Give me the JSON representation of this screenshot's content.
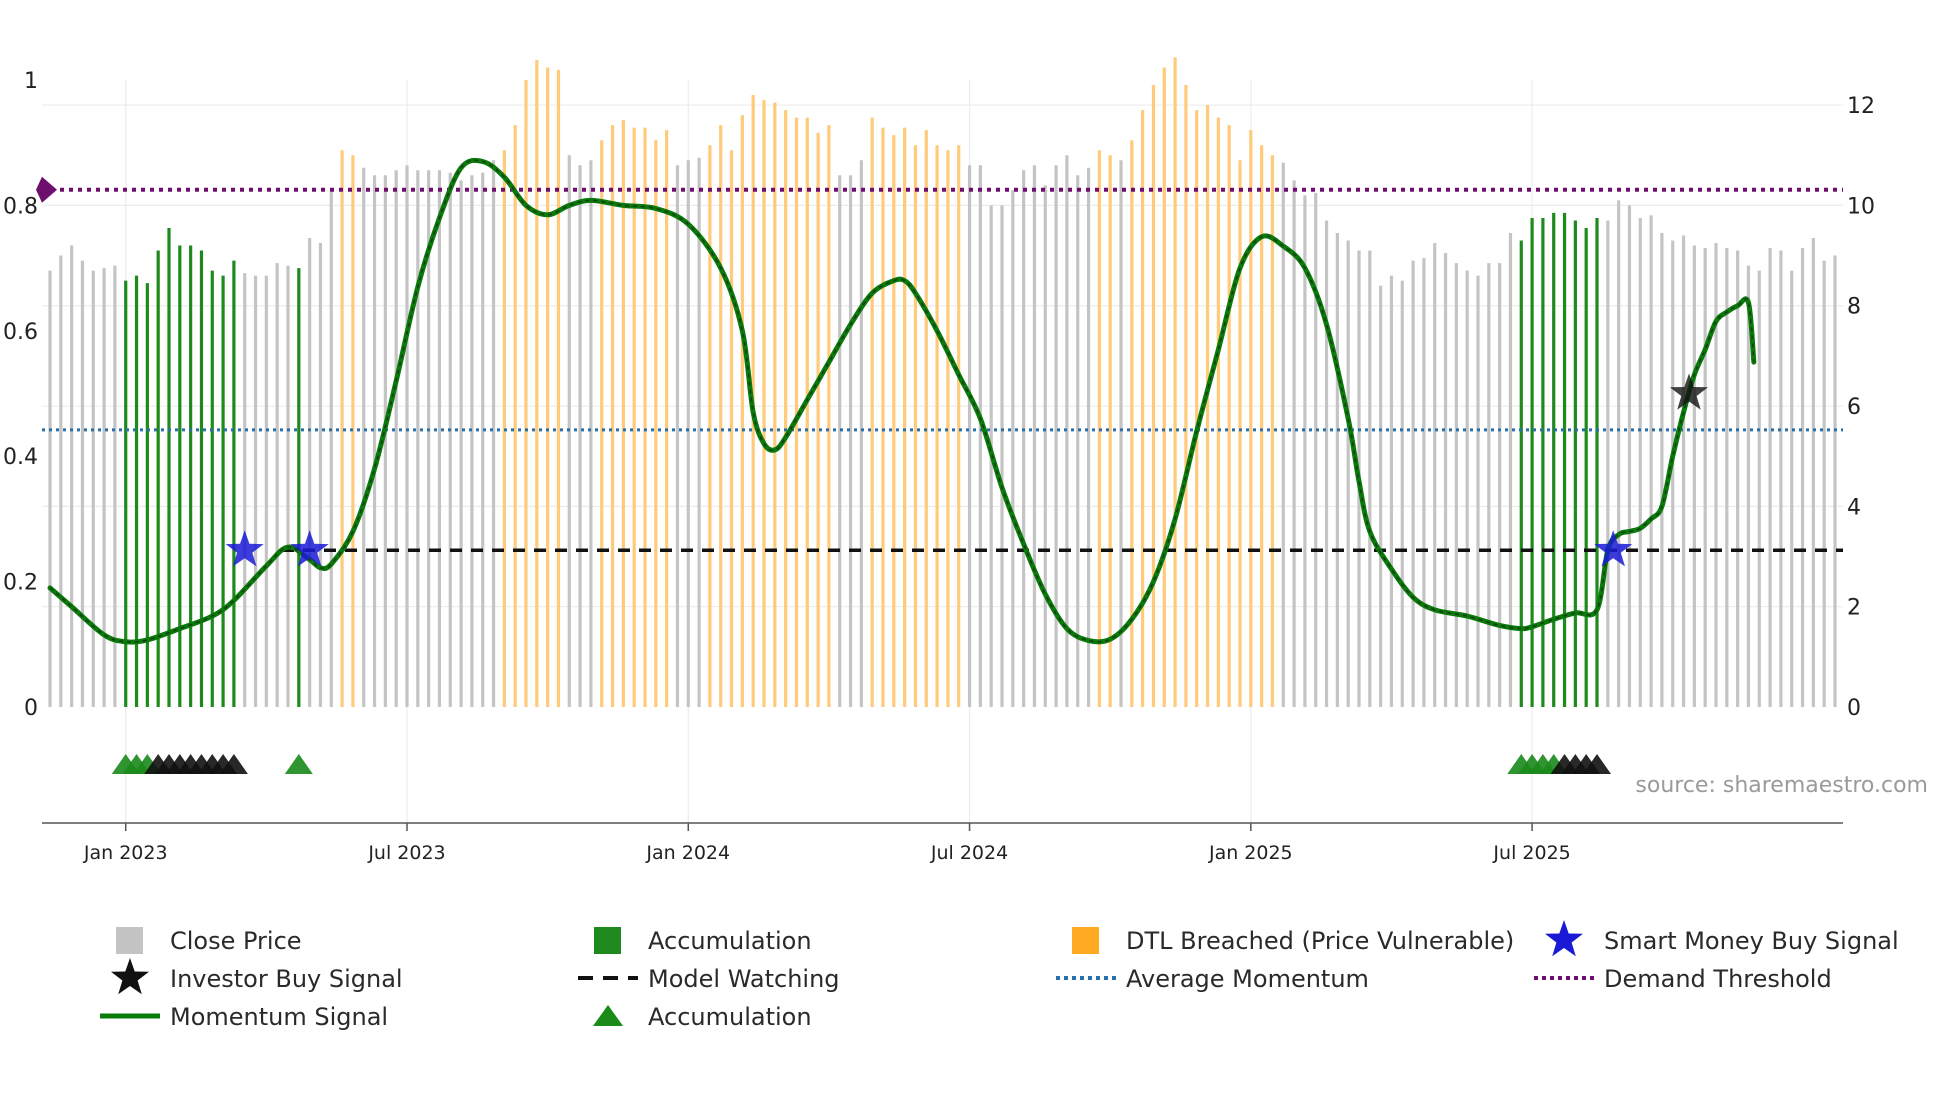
{
  "chart_data": {
    "type": "bar+line",
    "title": "",
    "source": "source: sharemaestro.com",
    "left_axis": {
      "ticks": [
        "0",
        "0.2",
        "0.4",
        "0.6",
        "0.8",
        "1"
      ],
      "ylim": [
        0,
        1
      ]
    },
    "right_axis": {
      "ticks": [
        "0",
        "2",
        "4",
        "6",
        "8",
        "10",
        "12"
      ],
      "ylim": [
        0,
        12.5
      ]
    },
    "x_ticks": [
      "Jan 2023",
      "Jul 2023",
      "Jan 2024",
      "Jul 2024",
      "Jan 2025",
      "Jul 2025"
    ],
    "x_tick_index": [
      7,
      33,
      59,
      85,
      111,
      137
    ],
    "colors": {
      "close": "#c4c4c4",
      "accumulation": "#1e8a1e",
      "dtl": "#ffca7a",
      "momentum": "#0a7a0a",
      "momentum_dash": "#173d17",
      "average": "#2a6fa8",
      "threshold": "#6e0f6e",
      "watching": "#111111",
      "smart_money": "#1a1ad6",
      "investor": "#111111",
      "marker_green": "#1a8a1a",
      "marker_black": "#111111"
    },
    "price_bars": [
      {
        "v": 8.7,
        "c": "G"
      },
      {
        "v": 9.0,
        "c": "G"
      },
      {
        "v": 9.2,
        "c": "G"
      },
      {
        "v": 8.9,
        "c": "G"
      },
      {
        "v": 8.7,
        "c": "G"
      },
      {
        "v": 8.75,
        "c": "G"
      },
      {
        "v": 8.8,
        "c": "G"
      },
      {
        "v": 8.5,
        "c": "A"
      },
      {
        "v": 8.6,
        "c": "A"
      },
      {
        "v": 8.45,
        "c": "A"
      },
      {
        "v": 9.1,
        "c": "A"
      },
      {
        "v": 9.55,
        "c": "A"
      },
      {
        "v": 9.2,
        "c": "A"
      },
      {
        "v": 9.2,
        "c": "A"
      },
      {
        "v": 9.1,
        "c": "A"
      },
      {
        "v": 8.7,
        "c": "A"
      },
      {
        "v": 8.6,
        "c": "A"
      },
      {
        "v": 8.9,
        "c": "A"
      },
      {
        "v": 8.65,
        "c": "G"
      },
      {
        "v": 8.6,
        "c": "G"
      },
      {
        "v": 8.6,
        "c": "G"
      },
      {
        "v": 8.85,
        "c": "G"
      },
      {
        "v": 8.8,
        "c": "G"
      },
      {
        "v": 8.75,
        "c": "A"
      },
      {
        "v": 9.35,
        "c": "G"
      },
      {
        "v": 9.25,
        "c": "G"
      },
      {
        "v": 10.3,
        "c": "G"
      },
      {
        "v": 11.1,
        "c": "O"
      },
      {
        "v": 11.0,
        "c": "O"
      },
      {
        "v": 10.75,
        "c": "G"
      },
      {
        "v": 10.6,
        "c": "G"
      },
      {
        "v": 10.6,
        "c": "G"
      },
      {
        "v": 10.7,
        "c": "G"
      },
      {
        "v": 10.8,
        "c": "G"
      },
      {
        "v": 10.7,
        "c": "G"
      },
      {
        "v": 10.7,
        "c": "G"
      },
      {
        "v": 10.7,
        "c": "G"
      },
      {
        "v": 10.65,
        "c": "G"
      },
      {
        "v": 10.5,
        "c": "G"
      },
      {
        "v": 10.6,
        "c": "G"
      },
      {
        "v": 10.65,
        "c": "G"
      },
      {
        "v": 10.9,
        "c": "G"
      },
      {
        "v": 11.1,
        "c": "O"
      },
      {
        "v": 11.6,
        "c": "O"
      },
      {
        "v": 12.5,
        "c": "O"
      },
      {
        "v": 12.9,
        "c": "O"
      },
      {
        "v": 12.75,
        "c": "O"
      },
      {
        "v": 12.7,
        "c": "O"
      },
      {
        "v": 11.0,
        "c": "G"
      },
      {
        "v": 10.8,
        "c": "G"
      },
      {
        "v": 10.9,
        "c": "G"
      },
      {
        "v": 11.3,
        "c": "O"
      },
      {
        "v": 11.6,
        "c": "O"
      },
      {
        "v": 11.7,
        "c": "O"
      },
      {
        "v": 11.55,
        "c": "O"
      },
      {
        "v": 11.55,
        "c": "O"
      },
      {
        "v": 11.3,
        "c": "O"
      },
      {
        "v": 11.5,
        "c": "O"
      },
      {
        "v": 10.8,
        "c": "G"
      },
      {
        "v": 10.9,
        "c": "G"
      },
      {
        "v": 10.95,
        "c": "G"
      },
      {
        "v": 11.2,
        "c": "O"
      },
      {
        "v": 11.6,
        "c": "O"
      },
      {
        "v": 11.1,
        "c": "O"
      },
      {
        "v": 11.8,
        "c": "O"
      },
      {
        "v": 12.2,
        "c": "O"
      },
      {
        "v": 12.1,
        "c": "O"
      },
      {
        "v": 12.05,
        "c": "O"
      },
      {
        "v": 11.9,
        "c": "O"
      },
      {
        "v": 11.75,
        "c": "O"
      },
      {
        "v": 11.75,
        "c": "O"
      },
      {
        "v": 11.45,
        "c": "O"
      },
      {
        "v": 11.6,
        "c": "O"
      },
      {
        "v": 10.6,
        "c": "G"
      },
      {
        "v": 10.6,
        "c": "G"
      },
      {
        "v": 10.9,
        "c": "G"
      },
      {
        "v": 11.75,
        "c": "O"
      },
      {
        "v": 11.55,
        "c": "O"
      },
      {
        "v": 11.4,
        "c": "O"
      },
      {
        "v": 11.55,
        "c": "O"
      },
      {
        "v": 11.2,
        "c": "O"
      },
      {
        "v": 11.5,
        "c": "O"
      },
      {
        "v": 11.2,
        "c": "O"
      },
      {
        "v": 11.1,
        "c": "O"
      },
      {
        "v": 11.2,
        "c": "O"
      },
      {
        "v": 10.8,
        "c": "G"
      },
      {
        "v": 10.8,
        "c": "G"
      },
      {
        "v": 10.0,
        "c": "G"
      },
      {
        "v": 10.0,
        "c": "G"
      },
      {
        "v": 10.3,
        "c": "G"
      },
      {
        "v": 10.7,
        "c": "G"
      },
      {
        "v": 10.8,
        "c": "G"
      },
      {
        "v": 10.4,
        "c": "G"
      },
      {
        "v": 10.8,
        "c": "G"
      },
      {
        "v": 11.0,
        "c": "G"
      },
      {
        "v": 10.6,
        "c": "G"
      },
      {
        "v": 10.75,
        "c": "G"
      },
      {
        "v": 11.1,
        "c": "O"
      },
      {
        "v": 11.0,
        "c": "O"
      },
      {
        "v": 10.9,
        "c": "G"
      },
      {
        "v": 11.3,
        "c": "O"
      },
      {
        "v": 11.9,
        "c": "O"
      },
      {
        "v": 12.4,
        "c": "O"
      },
      {
        "v": 12.75,
        "c": "O"
      },
      {
        "v": 12.95,
        "c": "O"
      },
      {
        "v": 12.4,
        "c": "O"
      },
      {
        "v": 11.9,
        "c": "O"
      },
      {
        "v": 12.0,
        "c": "O"
      },
      {
        "v": 11.75,
        "c": "O"
      },
      {
        "v": 11.6,
        "c": "O"
      },
      {
        "v": 10.9,
        "c": "O"
      },
      {
        "v": 11.5,
        "c": "O"
      },
      {
        "v": 11.2,
        "c": "O"
      },
      {
        "v": 11.0,
        "c": "O"
      },
      {
        "v": 10.85,
        "c": "G"
      },
      {
        "v": 10.5,
        "c": "G"
      },
      {
        "v": 10.2,
        "c": "G"
      },
      {
        "v": 10.25,
        "c": "G"
      },
      {
        "v": 9.7,
        "c": "G"
      },
      {
        "v": 9.45,
        "c": "G"
      },
      {
        "v": 9.3,
        "c": "G"
      },
      {
        "v": 9.1,
        "c": "G"
      },
      {
        "v": 9.1,
        "c": "G"
      },
      {
        "v": 8.4,
        "c": "G"
      },
      {
        "v": 8.6,
        "c": "G"
      },
      {
        "v": 8.5,
        "c": "G"
      },
      {
        "v": 8.9,
        "c": "G"
      },
      {
        "v": 8.95,
        "c": "G"
      },
      {
        "v": 9.25,
        "c": "G"
      },
      {
        "v": 9.05,
        "c": "G"
      },
      {
        "v": 8.85,
        "c": "G"
      },
      {
        "v": 8.7,
        "c": "G"
      },
      {
        "v": 8.6,
        "c": "G"
      },
      {
        "v": 8.85,
        "c": "G"
      },
      {
        "v": 8.85,
        "c": "G"
      },
      {
        "v": 9.45,
        "c": "G"
      },
      {
        "v": 9.3,
        "c": "A"
      },
      {
        "v": 9.75,
        "c": "A"
      },
      {
        "v": 9.75,
        "c": "A"
      },
      {
        "v": 9.85,
        "c": "A"
      },
      {
        "v": 9.85,
        "c": "A"
      },
      {
        "v": 9.7,
        "c": "A"
      },
      {
        "v": 9.55,
        "c": "A"
      },
      {
        "v": 9.75,
        "c": "A"
      },
      {
        "v": 9.7,
        "c": "G"
      },
      {
        "v": 10.1,
        "c": "G"
      },
      {
        "v": 10.0,
        "c": "G"
      },
      {
        "v": 9.75,
        "c": "G"
      },
      {
        "v": 9.8,
        "c": "G"
      },
      {
        "v": 9.45,
        "c": "G"
      },
      {
        "v": 9.3,
        "c": "G"
      },
      {
        "v": 9.4,
        "c": "G"
      },
      {
        "v": 9.2,
        "c": "G"
      },
      {
        "v": 9.15,
        "c": "G"
      },
      {
        "v": 9.25,
        "c": "G"
      },
      {
        "v": 9.15,
        "c": "G"
      },
      {
        "v": 9.1,
        "c": "G"
      },
      {
        "v": 8.8,
        "c": "G"
      },
      {
        "v": 8.7,
        "c": "G"
      },
      {
        "v": 9.15,
        "c": "G"
      },
      {
        "v": 9.1,
        "c": "G"
      },
      {
        "v": 8.7,
        "c": "G"
      },
      {
        "v": 9.15,
        "c": "G"
      },
      {
        "v": 9.35,
        "c": "G"
      },
      {
        "v": 8.9,
        "c": "G"
      },
      {
        "v": 9.0,
        "c": "G"
      }
    ],
    "series": [
      {
        "name": "Momentum Signal",
        "axis": "left",
        "points": [
          [
            0,
            0.19
          ],
          [
            2,
            0.16
          ],
          [
            5,
            0.115
          ],
          [
            7,
            0.104
          ],
          [
            9,
            0.107
          ],
          [
            12,
            0.125
          ],
          [
            15,
            0.145
          ],
          [
            17,
            0.17
          ],
          [
            20,
            0.225
          ],
          [
            22,
            0.255
          ],
          [
            24,
            0.235
          ],
          [
            25,
            0.222
          ],
          [
            26,
            0.228
          ],
          [
            28,
            0.28
          ],
          [
            30,
            0.38
          ],
          [
            32,
            0.52
          ],
          [
            34,
            0.67
          ],
          [
            36,
            0.78
          ],
          [
            38,
            0.86
          ],
          [
            40,
            0.87
          ],
          [
            42,
            0.845
          ],
          [
            44,
            0.8
          ],
          [
            46,
            0.785
          ],
          [
            48,
            0.8
          ],
          [
            50,
            0.808
          ],
          [
            53,
            0.8
          ],
          [
            56,
            0.795
          ],
          [
            59,
            0.77
          ],
          [
            62,
            0.7
          ],
          [
            64,
            0.6
          ],
          [
            65,
            0.47
          ],
          [
            66,
            0.42
          ],
          [
            67,
            0.41
          ],
          [
            68,
            0.43
          ],
          [
            70,
            0.49
          ],
          [
            72,
            0.55
          ],
          [
            74,
            0.61
          ],
          [
            76,
            0.66
          ],
          [
            78,
            0.68
          ],
          [
            79,
            0.68
          ],
          [
            80,
            0.66
          ],
          [
            82,
            0.6
          ],
          [
            84,
            0.53
          ],
          [
            86,
            0.46
          ],
          [
            88,
            0.35
          ],
          [
            90,
            0.26
          ],
          [
            92,
            0.18
          ],
          [
            94,
            0.125
          ],
          [
            96,
            0.106
          ],
          [
            98,
            0.108
          ],
          [
            100,
            0.14
          ],
          [
            102,
            0.2
          ],
          [
            104,
            0.3
          ],
          [
            106,
            0.44
          ],
          [
            108,
            0.57
          ],
          [
            110,
            0.7
          ],
          [
            112,
            0.75
          ],
          [
            114,
            0.735
          ],
          [
            116,
            0.7
          ],
          [
            118,
            0.61
          ],
          [
            120,
            0.46
          ],
          [
            121,
            0.36
          ],
          [
            122,
            0.28
          ],
          [
            124,
            0.22
          ],
          [
            126,
            0.175
          ],
          [
            128,
            0.155
          ],
          [
            131,
            0.145
          ],
          [
            134,
            0.13
          ],
          [
            136,
            0.125
          ],
          [
            137,
            0.128
          ],
          [
            139,
            0.14
          ],
          [
            141,
            0.15
          ],
          [
            143,
            0.155
          ],
          [
            144,
            0.25
          ],
          [
            145,
            0.275
          ],
          [
            146,
            0.28
          ],
          [
            147,
            0.285
          ],
          [
            148,
            0.3
          ],
          [
            149,
            0.32
          ],
          [
            150,
            0.4
          ],
          [
            151,
            0.47
          ],
          [
            152,
            0.53
          ],
          [
            153,
            0.57
          ],
          [
            154,
            0.615
          ],
          [
            155,
            0.63
          ],
          [
            156,
            0.64
          ],
          [
            157,
            0.645
          ],
          [
            157.5,
            0.55
          ]
        ]
      },
      {
        "name": "Average Momentum",
        "axis": "left",
        "value": 0.442
      },
      {
        "name": "Demand Threshold",
        "axis": "left",
        "value": 0.825
      },
      {
        "name": "Model Watching",
        "axis": "left",
        "value": 0.25
      }
    ],
    "smart_money_signals": [
      {
        "x": 18,
        "y": 0.25
      },
      {
        "x": 24,
        "y": 0.25
      },
      {
        "x": 144.5,
        "y": 0.25
      }
    ],
    "investor_signals": [
      {
        "x": 151.5,
        "y": 0.5
      }
    ],
    "accumulation_markers": [
      {
        "x": 7,
        "c": "g"
      },
      {
        "x": 8,
        "c": "g"
      },
      {
        "x": 9,
        "c": "g"
      },
      {
        "x": 10,
        "c": "k"
      },
      {
        "x": 11,
        "c": "k"
      },
      {
        "x": 12,
        "c": "k"
      },
      {
        "x": 13,
        "c": "k"
      },
      {
        "x": 14,
        "c": "k"
      },
      {
        "x": 15,
        "c": "k"
      },
      {
        "x": 16,
        "c": "k"
      },
      {
        "x": 17,
        "c": "k"
      },
      {
        "x": 23,
        "c": "g"
      },
      {
        "x": 136,
        "c": "g"
      },
      {
        "x": 137,
        "c": "g"
      },
      {
        "x": 138,
        "c": "g"
      },
      {
        "x": 139,
        "c": "g"
      },
      {
        "x": 140,
        "c": "k"
      },
      {
        "x": 141,
        "c": "k"
      },
      {
        "x": 142,
        "c": "k"
      },
      {
        "x": 143,
        "c": "k"
      }
    ],
    "legend": [
      {
        "key": "close",
        "label": "Close Price",
        "symbol": "square",
        "color": "#c4c4c4",
        "col": 0,
        "row": 0
      },
      {
        "key": "accum_bar",
        "label": "Accumulation",
        "symbol": "square",
        "color": "#1e8a1e",
        "col": 1,
        "row": 0
      },
      {
        "key": "dtl",
        "label": "DTL Breached (Price Vulnerable)",
        "symbol": "square",
        "color": "#ffaa22",
        "col": 2,
        "row": 0
      },
      {
        "key": "smart",
        "label": "Smart Money Buy Signal",
        "symbol": "star",
        "color": "#1a1ad6",
        "col": 3,
        "row": 0
      },
      {
        "key": "investor",
        "label": "Investor Buy Signal",
        "symbol": "star",
        "color": "#111111",
        "col": 0,
        "row": 1
      },
      {
        "key": "watching",
        "label": "Model Watching",
        "symbol": "dash",
        "color": "#111111",
        "col": 1,
        "row": 1
      },
      {
        "key": "average",
        "label": "Average Momentum",
        "symbol": "dot",
        "color": "#2a6fa8",
        "col": 2,
        "row": 1
      },
      {
        "key": "threshold",
        "label": "Demand Threshold",
        "symbol": "dot",
        "color": "#6e0f6e",
        "col": 3,
        "row": 1
      },
      {
        "key": "momentum",
        "label": "Momentum Signal",
        "symbol": "line",
        "color": "#0a7a0a",
        "col": 0,
        "row": 2
      },
      {
        "key": "accum_marker",
        "label": "Accumulation",
        "symbol": "triangle",
        "color": "#1a8a1a",
        "col": 1,
        "row": 2
      }
    ]
  }
}
